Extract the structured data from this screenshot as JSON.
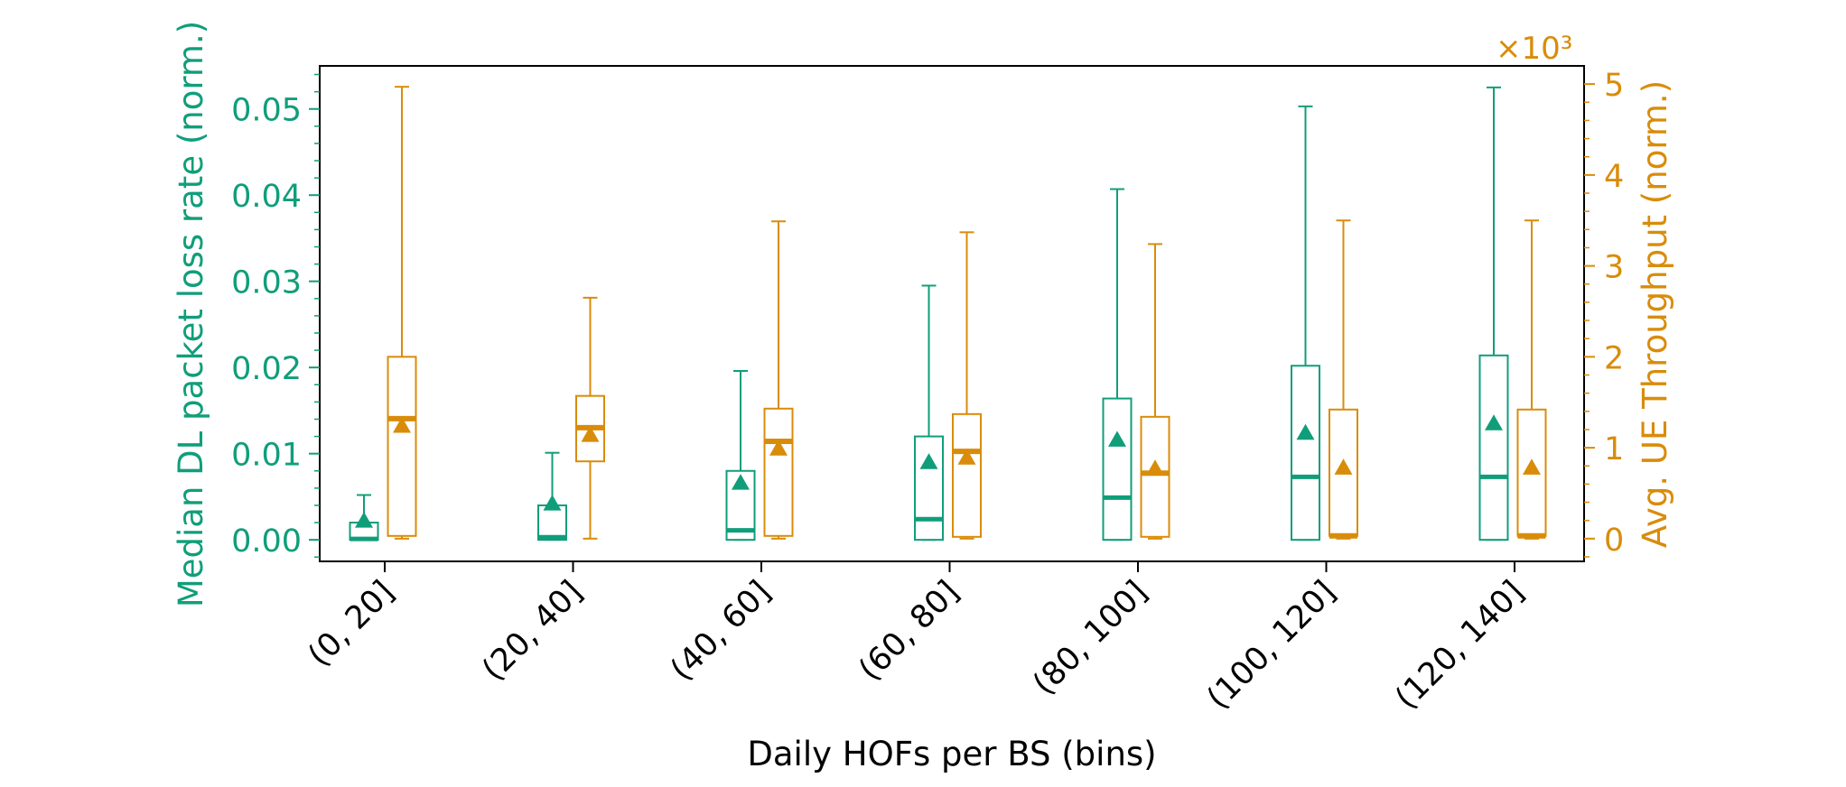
{
  "colors": {
    "left": "#109e7a",
    "right": "#d98c0a",
    "frame": "#000000"
  },
  "chart_data": {
    "type": "box",
    "xlabel": "Daily HOFs per BS (bins)",
    "ylabel_left": "Median DL packet loss rate (norm.)",
    "ylabel_right": "Avg. UE Throughput (norm.)",
    "right_axis_multiplier": "×10³",
    "ylim_left": [
      -0.0025,
      0.055
    ],
    "ylim_right": [
      -0.25,
      5.2
    ],
    "yticks_left": [
      "0.00",
      "0.01",
      "0.02",
      "0.03",
      "0.04",
      "0.05"
    ],
    "yticks_right": [
      "0",
      "1",
      "2",
      "3",
      "4",
      "5"
    ],
    "categories": [
      "(0, 20]",
      "(20, 40]",
      "(40, 60]",
      "(60, 80]",
      "(80, 100]",
      "(100, 120]",
      "(120, 140]"
    ],
    "series": [
      {
        "name": "Median DL packet loss rate",
        "axis": "left",
        "boxes": [
          {
            "whislo": 0.0,
            "q1": 0.0,
            "med": 0.0001,
            "q3": 0.002,
            "whishi": 0.0052,
            "mean": 0.0021
          },
          {
            "whislo": 0.0,
            "q1": 0.0,
            "med": 0.0003,
            "q3": 0.004,
            "whishi": 0.0101,
            "mean": 0.0041
          },
          {
            "whislo": 0.0,
            "q1": 0.0,
            "med": 0.0011,
            "q3": 0.008,
            "whishi": 0.0196,
            "mean": 0.0065
          },
          {
            "whislo": 0.0,
            "q1": 0.0,
            "med": 0.0024,
            "q3": 0.012,
            "whishi": 0.0295,
            "mean": 0.0089
          },
          {
            "whislo": 0.0,
            "q1": 0.0,
            "med": 0.0049,
            "q3": 0.0164,
            "whishi": 0.0407,
            "mean": 0.0115
          },
          {
            "whislo": 0.0,
            "q1": 0.0,
            "med": 0.0073,
            "q3": 0.0202,
            "whishi": 0.0503,
            "mean": 0.0123
          },
          {
            "whislo": 0.0,
            "q1": 0.0,
            "med": 0.0073,
            "q3": 0.0214,
            "whishi": 0.0525,
            "mean": 0.0134
          }
        ]
      },
      {
        "name": "Avg. UE Throughput",
        "axis": "right",
        "boxes": [
          {
            "whislo": 0.0,
            "q1": 0.03,
            "med": 1.32,
            "q3": 2.0,
            "whishi": 4.97,
            "mean": 1.23
          },
          {
            "whislo": 0.0,
            "q1": 0.85,
            "med": 1.22,
            "q3": 1.57,
            "whishi": 2.65,
            "mean": 1.13
          },
          {
            "whislo": 0.0,
            "q1": 0.03,
            "med": 1.07,
            "q3": 1.43,
            "whishi": 3.49,
            "mean": 0.98
          },
          {
            "whislo": 0.0,
            "q1": 0.02,
            "med": 0.96,
            "q3": 1.37,
            "whishi": 3.37,
            "mean": 0.88
          },
          {
            "whislo": 0.0,
            "q1": 0.02,
            "med": 0.72,
            "q3": 1.34,
            "whishi": 3.24,
            "mean": 0.76
          },
          {
            "whislo": 0.0,
            "q1": 0.03,
            "med": 0.03,
            "q3": 1.42,
            "whishi": 3.5,
            "mean": 0.77
          },
          {
            "whislo": 0.0,
            "q1": 0.03,
            "med": 0.03,
            "q3": 1.42,
            "whishi": 3.5,
            "mean": 0.77
          }
        ]
      }
    ],
    "grid": false,
    "legend": "none"
  }
}
